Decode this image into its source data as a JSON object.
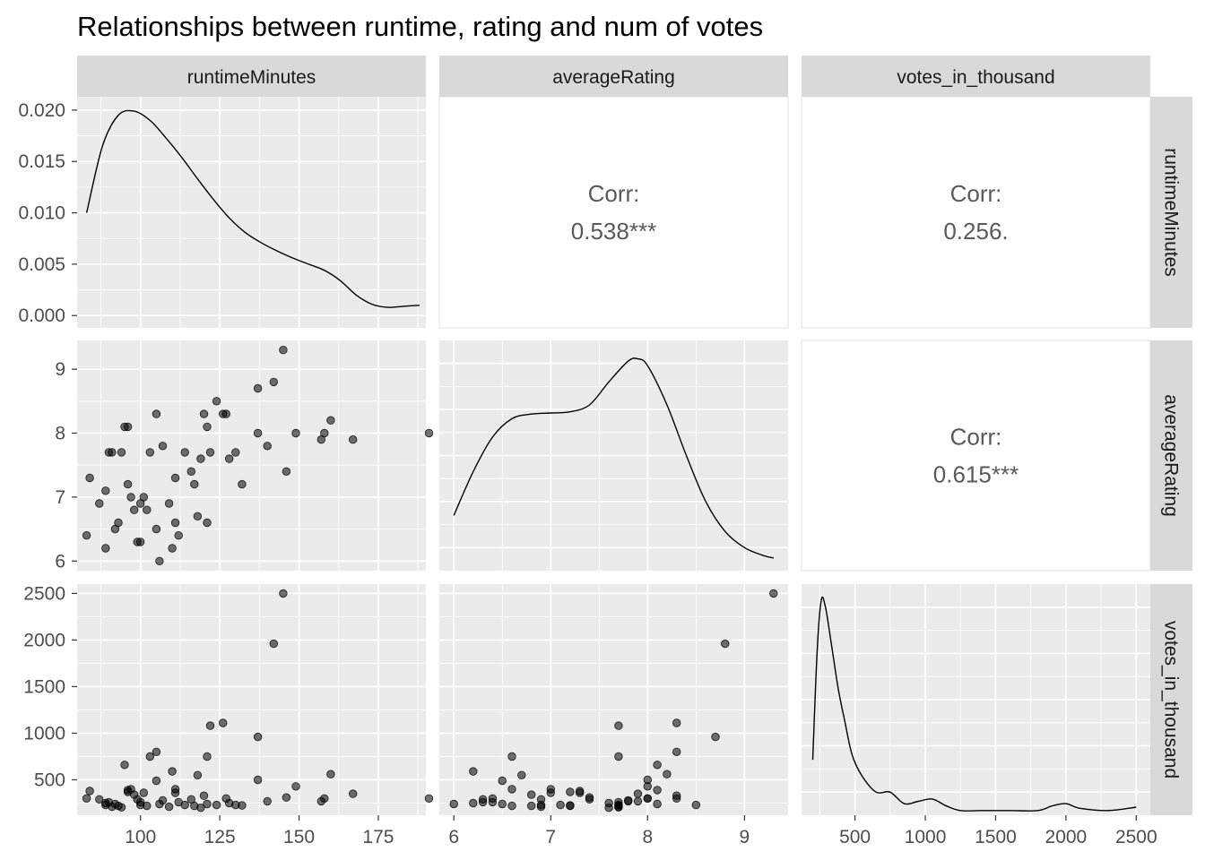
{
  "title": "Relationships between runtime, rating and num of votes",
  "variables": [
    "runtimeMinutes",
    "averageRating",
    "votes_in_thousand"
  ],
  "chart_data": {
    "type": "scatter",
    "title": "Relationships between runtime, rating and num of votes",
    "matrix": "pairs",
    "correlations": [
      {
        "row": "runtimeMinutes",
        "col": "averageRating",
        "label": "Corr:",
        "value": "0.538***"
      },
      {
        "row": "runtimeMinutes",
        "col": "votes_in_thousand",
        "label": "Corr:",
        "value": "0.256."
      },
      {
        "row": "averageRating",
        "col": "votes_in_thousand",
        "label": "Corr:",
        "value": "0.615***"
      }
    ],
    "axes": {
      "runtimeMinutes": {
        "range": [
          80,
          190
        ],
        "ticks": [
          100,
          125,
          150,
          175
        ]
      },
      "averageRating": {
        "range": [
          5.85,
          9.45
        ],
        "ticks": [
          6,
          7,
          8,
          9
        ]
      },
      "votes_in_thousand": {
        "range": [
          120,
          2600
        ],
        "ticks": [
          500,
          1000,
          1500,
          2000,
          2500
        ]
      },
      "density_runtime": {
        "range": [
          -0.0012,
          0.0213
        ],
        "ticks": [
          "0.000",
          "0.005",
          "0.010",
          "0.015",
          "0.020"
        ],
        "tick_values": [
          0,
          0.005,
          0.01,
          0.015,
          0.02
        ]
      }
    },
    "density": {
      "runtimeMinutes": {
        "x": [
          83,
          88,
          93,
          98,
          103,
          108,
          113,
          118,
          123,
          128,
          133,
          138,
          143,
          148,
          153,
          158,
          163,
          168,
          173,
          178,
          183,
          188
        ],
        "y": [
          0.01,
          0.0165,
          0.0195,
          0.0199,
          0.019,
          0.0173,
          0.0154,
          0.0133,
          0.0113,
          0.0095,
          0.0081,
          0.0071,
          0.0063,
          0.0056,
          0.005,
          0.0044,
          0.0034,
          0.002,
          0.0011,
          0.0008,
          0.0009,
          0.001
        ]
      },
      "averageRating": {
        "x": [
          6.0,
          6.2,
          6.4,
          6.6,
          6.8,
          7.0,
          7.2,
          7.4,
          7.6,
          7.8,
          7.9,
          8.0,
          8.2,
          8.4,
          8.6,
          8.8,
          9.0,
          9.2,
          9.3
        ],
        "y": [
          0.24,
          0.43,
          0.58,
          0.66,
          0.68,
          0.685,
          0.69,
          0.72,
          0.82,
          0.91,
          0.92,
          0.89,
          0.72,
          0.5,
          0.3,
          0.17,
          0.1,
          0.065,
          0.055
        ],
        "ylim": [
          0,
          1
        ]
      },
      "votes_in_thousand": {
        "x": [
          200,
          230,
          260,
          290,
          330,
          380,
          430,
          480,
          550,
          650,
          750,
          850,
          950,
          1050,
          1150,
          1250,
          1400,
          1600,
          1800,
          1900,
          2000,
          2100,
          2300,
          2500
        ],
        "y": [
          0.24,
          0.7,
          0.93,
          0.9,
          0.75,
          0.55,
          0.4,
          0.26,
          0.17,
          0.1,
          0.1,
          0.05,
          0.06,
          0.07,
          0.04,
          0.02,
          0.02,
          0.02,
          0.02,
          0.04,
          0.05,
          0.03,
          0.02,
          0.035
        ],
        "ylim": [
          0,
          1
        ]
      }
    },
    "points": [
      {
        "runtime": 83,
        "rating": 6.4,
        "votes": 300
      },
      {
        "runtime": 84,
        "rating": 7.3,
        "votes": 380
      },
      {
        "runtime": 87,
        "rating": 6.9,
        "votes": 290
      },
      {
        "runtime": 89,
        "rating": 6.2,
        "votes": 250
      },
      {
        "runtime": 89,
        "rating": 7.1,
        "votes": 230
      },
      {
        "runtime": 90,
        "rating": 7.7,
        "votes": 260
      },
      {
        "runtime": 91,
        "rating": 7.7,
        "votes": 210
      },
      {
        "runtime": 92,
        "rating": 6.5,
        "votes": 240
      },
      {
        "runtime": 93,
        "rating": 6.6,
        "votes": 220
      },
      {
        "runtime": 94,
        "rating": 7.7,
        "votes": 205
      },
      {
        "runtime": 95,
        "rating": 8.1,
        "votes": 660
      },
      {
        "runtime": 96,
        "rating": 8.1,
        "votes": 390
      },
      {
        "runtime": 96,
        "rating": 7.2,
        "votes": 370
      },
      {
        "runtime": 97,
        "rating": 7.0,
        "votes": 400
      },
      {
        "runtime": 98,
        "rating": 6.8,
        "votes": 340
      },
      {
        "runtime": 99,
        "rating": 6.3,
        "votes": 290
      },
      {
        "runtime": 100,
        "rating": 6.3,
        "votes": 260
      },
      {
        "runtime": 100,
        "rating": 6.9,
        "votes": 230
      },
      {
        "runtime": 101,
        "rating": 7.0,
        "votes": 360
      },
      {
        "runtime": 102,
        "rating": 6.8,
        "votes": 220
      },
      {
        "runtime": 103,
        "rating": 7.7,
        "votes": 750
      },
      {
        "runtime": 105,
        "rating": 8.3,
        "votes": 800
      },
      {
        "runtime": 105,
        "rating": 6.5,
        "votes": 490
      },
      {
        "runtime": 106,
        "rating": 6.0,
        "votes": 240
      },
      {
        "runtime": 107,
        "rating": 7.8,
        "votes": 280
      },
      {
        "runtime": 109,
        "rating": 6.9,
        "votes": 210
      },
      {
        "runtime": 110,
        "rating": 6.2,
        "votes": 590
      },
      {
        "runtime": 111,
        "rating": 6.6,
        "votes": 400
      },
      {
        "runtime": 111,
        "rating": 7.3,
        "votes": 360
      },
      {
        "runtime": 112,
        "rating": 6.4,
        "votes": 260
      },
      {
        "runtime": 114,
        "rating": 7.7,
        "votes": 230
      },
      {
        "runtime": 116,
        "rating": 7.4,
        "votes": 290
      },
      {
        "runtime": 117,
        "rating": 7.2,
        "votes": 220
      },
      {
        "runtime": 118,
        "rating": 6.7,
        "votes": 550
      },
      {
        "runtime": 119,
        "rating": 7.6,
        "votes": 200
      },
      {
        "runtime": 120,
        "rating": 8.3,
        "votes": 330
      },
      {
        "runtime": 121,
        "rating": 6.6,
        "votes": 750
      },
      {
        "runtime": 121,
        "rating": 8.1,
        "votes": 240
      },
      {
        "runtime": 122,
        "rating": 7.7,
        "votes": 1080
      },
      {
        "runtime": 124,
        "rating": 8.5,
        "votes": 230
      },
      {
        "runtime": 126,
        "rating": 8.3,
        "votes": 1110
      },
      {
        "runtime": 127,
        "rating": 8.3,
        "votes": 300
      },
      {
        "runtime": 128,
        "rating": 7.6,
        "votes": 250
      },
      {
        "runtime": 130,
        "rating": 7.7,
        "votes": 230
      },
      {
        "runtime": 132,
        "rating": 7.2,
        "votes": 225
      },
      {
        "runtime": 137,
        "rating": 8.7,
        "votes": 960
      },
      {
        "runtime": 137,
        "rating": 8.0,
        "votes": 500
      },
      {
        "runtime": 140,
        "rating": 7.8,
        "votes": 270
      },
      {
        "runtime": 142,
        "rating": 8.8,
        "votes": 1960
      },
      {
        "runtime": 145,
        "rating": 9.3,
        "votes": 2500
      },
      {
        "runtime": 146,
        "rating": 7.4,
        "votes": 310
      },
      {
        "runtime": 149,
        "rating": 8.0,
        "votes": 430
      },
      {
        "runtime": 157,
        "rating": 7.9,
        "votes": 270
      },
      {
        "runtime": 158,
        "rating": 8.0,
        "votes": 300
      },
      {
        "runtime": 160,
        "rating": 8.2,
        "votes": 560
      },
      {
        "runtime": 167,
        "rating": 7.9,
        "votes": 350
      },
      {
        "runtime": 191,
        "rating": 8.0,
        "votes": 300
      }
    ]
  }
}
